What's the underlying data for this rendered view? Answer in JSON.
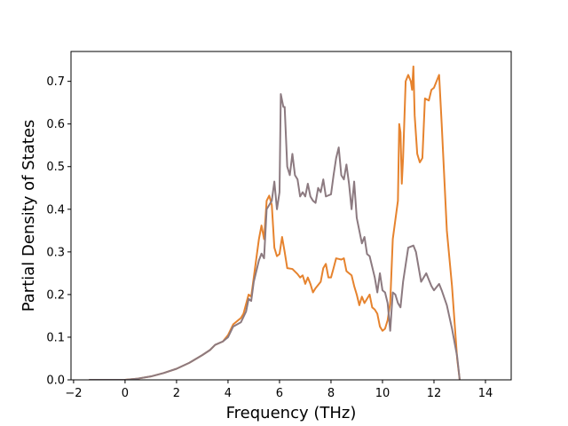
{
  "chart_data": {
    "type": "line",
    "title": "",
    "xlabel": "Frequency (THz)",
    "ylabel": "Partial Density of States",
    "xlim": [
      -2.1,
      15.0
    ],
    "ylim": [
      0.0,
      0.77
    ],
    "xticks": [
      -2,
      0,
      2,
      4,
      6,
      8,
      10,
      12,
      14
    ],
    "xtick_labels": [
      "−2",
      "0",
      "2",
      "4",
      "6",
      "8",
      "10",
      "12",
      "14"
    ],
    "yticks": [
      0.0,
      0.1,
      0.2,
      0.3,
      0.4,
      0.5,
      0.6,
      0.7
    ],
    "ytick_labels": [
      "0.0",
      "0.1",
      "0.2",
      "0.3",
      "0.4",
      "0.5",
      "0.6",
      "0.7"
    ],
    "grid": false,
    "legend": "none",
    "series": [
      {
        "color": "#e6832e",
        "points": [
          [
            -1.4,
            0.0
          ],
          [
            0.0,
            0.0
          ],
          [
            0.5,
            0.003
          ],
          [
            1.0,
            0.008
          ],
          [
            1.5,
            0.016
          ],
          [
            2.0,
            0.026
          ],
          [
            2.5,
            0.04
          ],
          [
            3.0,
            0.058
          ],
          [
            3.3,
            0.07
          ],
          [
            3.5,
            0.082
          ],
          [
            3.8,
            0.09
          ],
          [
            4.0,
            0.105
          ],
          [
            4.2,
            0.13
          ],
          [
            4.5,
            0.145
          ],
          [
            4.6,
            0.155
          ],
          [
            4.8,
            0.2
          ],
          [
            4.9,
            0.195
          ],
          [
            5.0,
            0.24
          ],
          [
            5.2,
            0.33
          ],
          [
            5.3,
            0.362
          ],
          [
            5.4,
            0.33
          ],
          [
            5.5,
            0.42
          ],
          [
            5.6,
            0.432
          ],
          [
            5.7,
            0.41
          ],
          [
            5.8,
            0.31
          ],
          [
            5.9,
            0.29
          ],
          [
            6.0,
            0.295
          ],
          [
            6.1,
            0.335
          ],
          [
            6.2,
            0.3
          ],
          [
            6.3,
            0.262
          ],
          [
            6.5,
            0.26
          ],
          [
            6.7,
            0.248
          ],
          [
            6.8,
            0.24
          ],
          [
            6.9,
            0.245
          ],
          [
            7.0,
            0.225
          ],
          [
            7.1,
            0.24
          ],
          [
            7.2,
            0.225
          ],
          [
            7.3,
            0.205
          ],
          [
            7.4,
            0.215
          ],
          [
            7.6,
            0.23
          ],
          [
            7.7,
            0.262
          ],
          [
            7.8,
            0.272
          ],
          [
            7.9,
            0.24
          ],
          [
            8.0,
            0.24
          ],
          [
            8.1,
            0.262
          ],
          [
            8.2,
            0.285
          ],
          [
            8.4,
            0.282
          ],
          [
            8.5,
            0.285
          ],
          [
            8.6,
            0.255
          ],
          [
            8.8,
            0.245
          ],
          [
            8.9,
            0.22
          ],
          [
            9.0,
            0.2
          ],
          [
            9.1,
            0.175
          ],
          [
            9.2,
            0.195
          ],
          [
            9.3,
            0.18
          ],
          [
            9.5,
            0.2
          ],
          [
            9.6,
            0.17
          ],
          [
            9.7,
            0.165
          ],
          [
            9.8,
            0.155
          ],
          [
            9.9,
            0.125
          ],
          [
            10.0,
            0.115
          ],
          [
            10.1,
            0.12
          ],
          [
            10.2,
            0.14
          ],
          [
            10.3,
            0.18
          ],
          [
            10.4,
            0.33
          ],
          [
            10.6,
            0.42
          ],
          [
            10.65,
            0.6
          ],
          [
            10.7,
            0.58
          ],
          [
            10.75,
            0.46
          ],
          [
            10.8,
            0.52
          ],
          [
            10.9,
            0.7
          ],
          [
            11.0,
            0.715
          ],
          [
            11.1,
            0.7
          ],
          [
            11.15,
            0.68
          ],
          [
            11.2,
            0.735
          ],
          [
            11.25,
            0.62
          ],
          [
            11.35,
            0.53
          ],
          [
            11.45,
            0.51
          ],
          [
            11.55,
            0.52
          ],
          [
            11.65,
            0.66
          ],
          [
            11.8,
            0.655
          ],
          [
            11.9,
            0.68
          ],
          [
            12.0,
            0.685
          ],
          [
            12.1,
            0.7
          ],
          [
            12.2,
            0.715
          ],
          [
            12.3,
            0.6
          ],
          [
            12.5,
            0.35
          ],
          [
            12.7,
            0.22
          ],
          [
            12.9,
            0.05
          ],
          [
            13.0,
            0.0
          ]
        ]
      },
      {
        "color": "#8c7a80",
        "points": [
          [
            -1.4,
            0.0
          ],
          [
            0.0,
            0.0
          ],
          [
            0.5,
            0.003
          ],
          [
            1.0,
            0.008
          ],
          [
            1.5,
            0.016
          ],
          [
            2.0,
            0.026
          ],
          [
            2.5,
            0.04
          ],
          [
            3.0,
            0.058
          ],
          [
            3.3,
            0.07
          ],
          [
            3.5,
            0.082
          ],
          [
            3.8,
            0.09
          ],
          [
            4.0,
            0.1
          ],
          [
            4.2,
            0.125
          ],
          [
            4.5,
            0.135
          ],
          [
            4.7,
            0.16
          ],
          [
            4.8,
            0.19
          ],
          [
            4.9,
            0.185
          ],
          [
            5.0,
            0.23
          ],
          [
            5.2,
            0.28
          ],
          [
            5.3,
            0.296
          ],
          [
            5.4,
            0.285
          ],
          [
            5.5,
            0.4
          ],
          [
            5.6,
            0.41
          ],
          [
            5.7,
            0.42
          ],
          [
            5.8,
            0.465
          ],
          [
            5.9,
            0.4
          ],
          [
            6.0,
            0.44
          ],
          [
            6.05,
            0.67
          ],
          [
            6.1,
            0.655
          ],
          [
            6.15,
            0.64
          ],
          [
            6.2,
            0.64
          ],
          [
            6.3,
            0.5
          ],
          [
            6.4,
            0.48
          ],
          [
            6.5,
            0.53
          ],
          [
            6.6,
            0.48
          ],
          [
            6.7,
            0.47
          ],
          [
            6.8,
            0.43
          ],
          [
            6.9,
            0.44
          ],
          [
            7.0,
            0.43
          ],
          [
            7.1,
            0.46
          ],
          [
            7.2,
            0.43
          ],
          [
            7.3,
            0.42
          ],
          [
            7.4,
            0.415
          ],
          [
            7.5,
            0.45
          ],
          [
            7.6,
            0.44
          ],
          [
            7.7,
            0.47
          ],
          [
            7.8,
            0.43
          ],
          [
            8.0,
            0.435
          ],
          [
            8.1,
            0.48
          ],
          [
            8.2,
            0.52
          ],
          [
            8.3,
            0.545
          ],
          [
            8.4,
            0.48
          ],
          [
            8.5,
            0.47
          ],
          [
            8.6,
            0.505
          ],
          [
            8.7,
            0.46
          ],
          [
            8.8,
            0.4
          ],
          [
            8.9,
            0.465
          ],
          [
            9.0,
            0.38
          ],
          [
            9.1,
            0.35
          ],
          [
            9.2,
            0.32
          ],
          [
            9.3,
            0.335
          ],
          [
            9.4,
            0.295
          ],
          [
            9.5,
            0.29
          ],
          [
            9.6,
            0.265
          ],
          [
            9.7,
            0.24
          ],
          [
            9.8,
            0.205
          ],
          [
            9.9,
            0.25
          ],
          [
            10.0,
            0.21
          ],
          [
            10.1,
            0.205
          ],
          [
            10.2,
            0.18
          ],
          [
            10.3,
            0.115
          ],
          [
            10.4,
            0.205
          ],
          [
            10.5,
            0.2
          ],
          [
            10.6,
            0.18
          ],
          [
            10.7,
            0.17
          ],
          [
            10.8,
            0.23
          ],
          [
            10.9,
            0.27
          ],
          [
            11.0,
            0.31
          ],
          [
            11.2,
            0.315
          ],
          [
            11.3,
            0.3
          ],
          [
            11.4,
            0.265
          ],
          [
            11.5,
            0.23
          ],
          [
            11.6,
            0.24
          ],
          [
            11.7,
            0.25
          ],
          [
            11.8,
            0.235
          ],
          [
            11.9,
            0.22
          ],
          [
            12.0,
            0.21
          ],
          [
            12.2,
            0.225
          ],
          [
            12.3,
            0.21
          ],
          [
            12.5,
            0.175
          ],
          [
            12.7,
            0.12
          ],
          [
            12.9,
            0.055
          ],
          [
            13.0,
            0.0
          ]
        ]
      }
    ]
  }
}
